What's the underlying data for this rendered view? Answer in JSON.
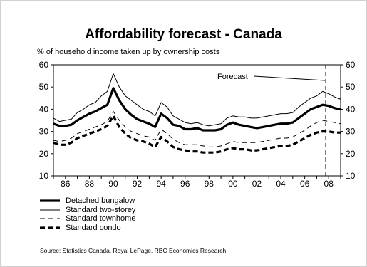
{
  "chart_data": {
    "type": "line",
    "title": "Affordability forecast - Canada",
    "subtitle": "% of household income taken up by ownership costs",
    "x_tick_labels": [
      "86",
      "88",
      "90",
      "92",
      "94",
      "96",
      "98",
      "00",
      "02",
      "04",
      "06",
      "08"
    ],
    "x_ticks": [
      1986,
      1988,
      1990,
      1992,
      1994,
      1996,
      1998,
      2000,
      2002,
      2004,
      2006,
      2008
    ],
    "xlim": [
      1985,
      2009
    ],
    "ylim": [
      10,
      60
    ],
    "y_ticks": [
      10,
      20,
      30,
      40,
      50,
      60
    ],
    "y_tick_labels": [
      "10",
      "20",
      "30",
      "40",
      "50",
      "60"
    ],
    "forecast_start": 2007.75,
    "annotation": "Forecast",
    "source": "Source: Statistics Canada, Royal LePage, RBC Economics Research",
    "series": [
      {
        "name": "Standard two-storey",
        "style": "thin-solid",
        "points": [
          [
            1985,
            36
          ],
          [
            1985.5,
            34.5
          ],
          [
            1986,
            35
          ],
          [
            1986.5,
            35.5
          ],
          [
            1987,
            38.5
          ],
          [
            1987.5,
            40
          ],
          [
            1988,
            42
          ],
          [
            1988.5,
            43
          ],
          [
            1989,
            46
          ],
          [
            1989.5,
            48
          ],
          [
            1990,
            56
          ],
          [
            1990.5,
            50
          ],
          [
            1991,
            46
          ],
          [
            1991.5,
            44
          ],
          [
            1992,
            42
          ],
          [
            1992.5,
            40
          ],
          [
            1993,
            39
          ],
          [
            1993.5,
            37
          ],
          [
            1994,
            43
          ],
          [
            1994.5,
            41
          ],
          [
            1995,
            37
          ],
          [
            1995.5,
            35.5
          ],
          [
            1996,
            34
          ],
          [
            1996.5,
            33.5
          ],
          [
            1997,
            34
          ],
          [
            1997.5,
            33
          ],
          [
            1998,
            32.5
          ],
          [
            1998.5,
            33
          ],
          [
            1999,
            33.5
          ],
          [
            1999.5,
            36
          ],
          [
            2000,
            37
          ],
          [
            2000.5,
            36.5
          ],
          [
            2001,
            36.5
          ],
          [
            2001.5,
            36
          ],
          [
            2002,
            36
          ],
          [
            2002.5,
            36.5
          ],
          [
            2003,
            37
          ],
          [
            2003.5,
            37.5
          ],
          [
            2004,
            38
          ],
          [
            2004.5,
            38
          ],
          [
            2005,
            38.5
          ],
          [
            2005.5,
            41
          ],
          [
            2006,
            43
          ],
          [
            2006.5,
            45
          ],
          [
            2007,
            46
          ],
          [
            2007.5,
            48
          ],
          [
            2008,
            47
          ],
          [
            2008.5,
            45.5
          ],
          [
            2009,
            44.5
          ]
        ]
      },
      {
        "name": "Detached bungalow",
        "style": "thick-solid",
        "points": [
          [
            1985,
            33.5
          ],
          [
            1985.5,
            32.5
          ],
          [
            1986,
            32.5
          ],
          [
            1986.5,
            33
          ],
          [
            1987,
            35
          ],
          [
            1987.5,
            36.5
          ],
          [
            1988,
            38
          ],
          [
            1988.5,
            39
          ],
          [
            1989,
            40.5
          ],
          [
            1989.5,
            42
          ],
          [
            1990,
            49.5
          ],
          [
            1990.5,
            44
          ],
          [
            1991,
            40
          ],
          [
            1991.5,
            37.5
          ],
          [
            1992,
            35.5
          ],
          [
            1992.5,
            34.5
          ],
          [
            1993,
            33.5
          ],
          [
            1993.5,
            32
          ],
          [
            1994,
            38
          ],
          [
            1994.5,
            36
          ],
          [
            1995,
            33
          ],
          [
            1995.5,
            32.5
          ],
          [
            1996,
            31
          ],
          [
            1996.5,
            31
          ],
          [
            1997,
            31.5
          ],
          [
            1997.5,
            30.5
          ],
          [
            1998,
            30.5
          ],
          [
            1998.5,
            30.5
          ],
          [
            1999,
            31
          ],
          [
            1999.5,
            33
          ],
          [
            2000,
            34
          ],
          [
            2000.5,
            33
          ],
          [
            2001,
            32.5
          ],
          [
            2001.5,
            32
          ],
          [
            2002,
            31.5
          ],
          [
            2002.5,
            32
          ],
          [
            2003,
            32.5
          ],
          [
            2003.5,
            33
          ],
          [
            2004,
            33.5
          ],
          [
            2004.5,
            33.5
          ],
          [
            2005,
            34
          ],
          [
            2005.5,
            36
          ],
          [
            2006,
            38
          ],
          [
            2006.5,
            40
          ],
          [
            2007,
            41
          ],
          [
            2007.5,
            42
          ],
          [
            2008,
            41.5
          ],
          [
            2008.5,
            40.5
          ],
          [
            2009,
            40
          ]
        ]
      },
      {
        "name": "Standard townhome",
        "style": "thin-dashed",
        "points": [
          [
            1985,
            26
          ],
          [
            1985.5,
            25.5
          ],
          [
            1986,
            26
          ],
          [
            1986.5,
            27
          ],
          [
            1987,
            29
          ],
          [
            1987.5,
            30
          ],
          [
            1988,
            31
          ],
          [
            1988.5,
            32
          ],
          [
            1989,
            33
          ],
          [
            1989.5,
            34.5
          ],
          [
            1990,
            39
          ],
          [
            1990.5,
            35
          ],
          [
            1991,
            32
          ],
          [
            1991.5,
            30
          ],
          [
            1992,
            29
          ],
          [
            1992.5,
            28
          ],
          [
            1993,
            27.5
          ],
          [
            1993.5,
            26
          ],
          [
            1994,
            31
          ],
          [
            1994.5,
            29
          ],
          [
            1995,
            26.5
          ],
          [
            1995.5,
            25
          ],
          [
            1996,
            24
          ],
          [
            1996.5,
            24
          ],
          [
            1997,
            24
          ],
          [
            1997.5,
            23.5
          ],
          [
            1998,
            23
          ],
          [
            1998.5,
            23
          ],
          [
            1999,
            23.5
          ],
          [
            1999.5,
            24.5
          ],
          [
            2000,
            25.5
          ],
          [
            2000.5,
            25
          ],
          [
            2001,
            25
          ],
          [
            2001.5,
            25
          ],
          [
            2002,
            25
          ],
          [
            2002.5,
            25.5
          ],
          [
            2003,
            26
          ],
          [
            2003.5,
            26.5
          ],
          [
            2004,
            27
          ],
          [
            2004.5,
            27
          ],
          [
            2005,
            27.5
          ],
          [
            2005.5,
            29
          ],
          [
            2006,
            30.5
          ],
          [
            2006.5,
            32.5
          ],
          [
            2007,
            34
          ],
          [
            2007.5,
            35
          ],
          [
            2008,
            34.5
          ],
          [
            2008.5,
            34
          ],
          [
            2009,
            33.5
          ]
        ]
      },
      {
        "name": "Standard condo",
        "style": "thick-dashed",
        "points": [
          [
            1985,
            25
          ],
          [
            1985.5,
            24
          ],
          [
            1986,
            24
          ],
          [
            1986.5,
            25
          ],
          [
            1987,
            27
          ],
          [
            1987.5,
            28
          ],
          [
            1988,
            29
          ],
          [
            1988.5,
            30
          ],
          [
            1989,
            31
          ],
          [
            1989.5,
            32.5
          ],
          [
            1990,
            37
          ],
          [
            1990.5,
            32
          ],
          [
            1991,
            29
          ],
          [
            1991.5,
            27
          ],
          [
            1992,
            26
          ],
          [
            1992.5,
            25.5
          ],
          [
            1993,
            24.5
          ],
          [
            1993.5,
            23
          ],
          [
            1994,
            27.5
          ],
          [
            1994.5,
            25.5
          ],
          [
            1995,
            23
          ],
          [
            1995.5,
            22
          ],
          [
            1996,
            21.5
          ],
          [
            1996.5,
            21
          ],
          [
            1997,
            21
          ],
          [
            1997.5,
            20.5
          ],
          [
            1998,
            20.5
          ],
          [
            1998.5,
            20.5
          ],
          [
            1999,
            21
          ],
          [
            1999.5,
            22
          ],
          [
            2000,
            22.5
          ],
          [
            2000.5,
            22
          ],
          [
            2001,
            22
          ],
          [
            2001.5,
            21.5
          ],
          [
            2002,
            21.5
          ],
          [
            2002.5,
            22
          ],
          [
            2003,
            22.5
          ],
          [
            2003.5,
            23
          ],
          [
            2004,
            23.5
          ],
          [
            2004.5,
            23.5
          ],
          [
            2005,
            24
          ],
          [
            2005.5,
            25.5
          ],
          [
            2006,
            27
          ],
          [
            2006.5,
            28.5
          ],
          [
            2007,
            29.5
          ],
          [
            2007.5,
            30
          ],
          [
            2008,
            30
          ],
          [
            2008.5,
            29.5
          ],
          [
            2009,
            29.5
          ]
        ]
      }
    ],
    "legend": [
      {
        "label": "Detached bungalow",
        "style": "thick-solid"
      },
      {
        "label": "Standard two-storey",
        "style": "thin-solid"
      },
      {
        "label": "Standard townhome",
        "style": "thin-dashed"
      },
      {
        "label": "Standard condo",
        "style": "thick-dashed"
      }
    ],
    "legend_position": "bottom-left",
    "grid": false
  }
}
